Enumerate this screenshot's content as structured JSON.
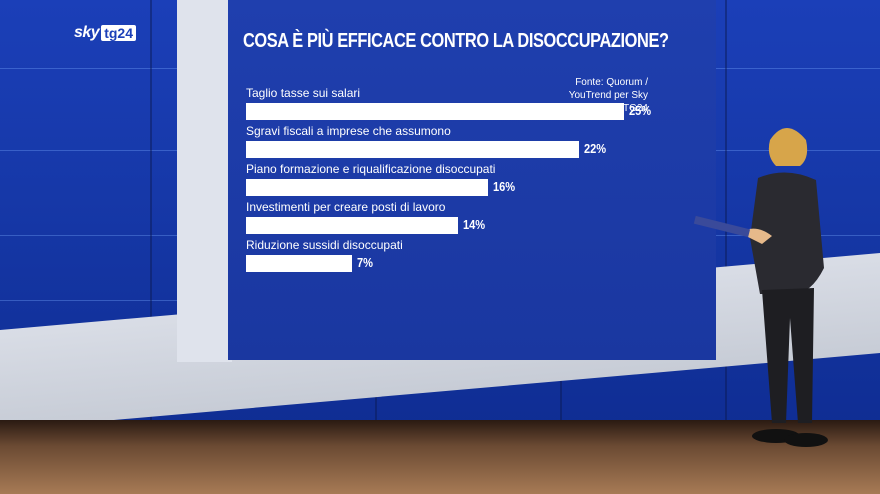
{
  "logo": {
    "sky": "sky",
    "tg": "tg24"
  },
  "chart_data": {
    "type": "bar",
    "orientation": "horizontal",
    "title": "COSA È PIÙ EFFICACE CONTRO LA DISOCCUPAZIONE?",
    "source": "Fonte: Quorum / YouTrend per Sky TG24",
    "categories": [
      "Taglio tasse sui salari",
      "Sgravi fiscali a imprese che assumono",
      "Piano formazione e riqualificazione disoccupati",
      "Investimenti per creare posti di lavoro",
      "Riduzione sussidi disoccupati"
    ],
    "values": [
      25,
      22,
      16,
      14,
      7
    ],
    "value_labels": [
      "25%",
      "22%",
      "16%",
      "14%",
      "7%"
    ],
    "xlim": [
      0,
      25
    ],
    "grid": false,
    "bar_color": "#ffffff"
  },
  "colors": {
    "background": "#1a37a0",
    "text": "#ffffff"
  }
}
